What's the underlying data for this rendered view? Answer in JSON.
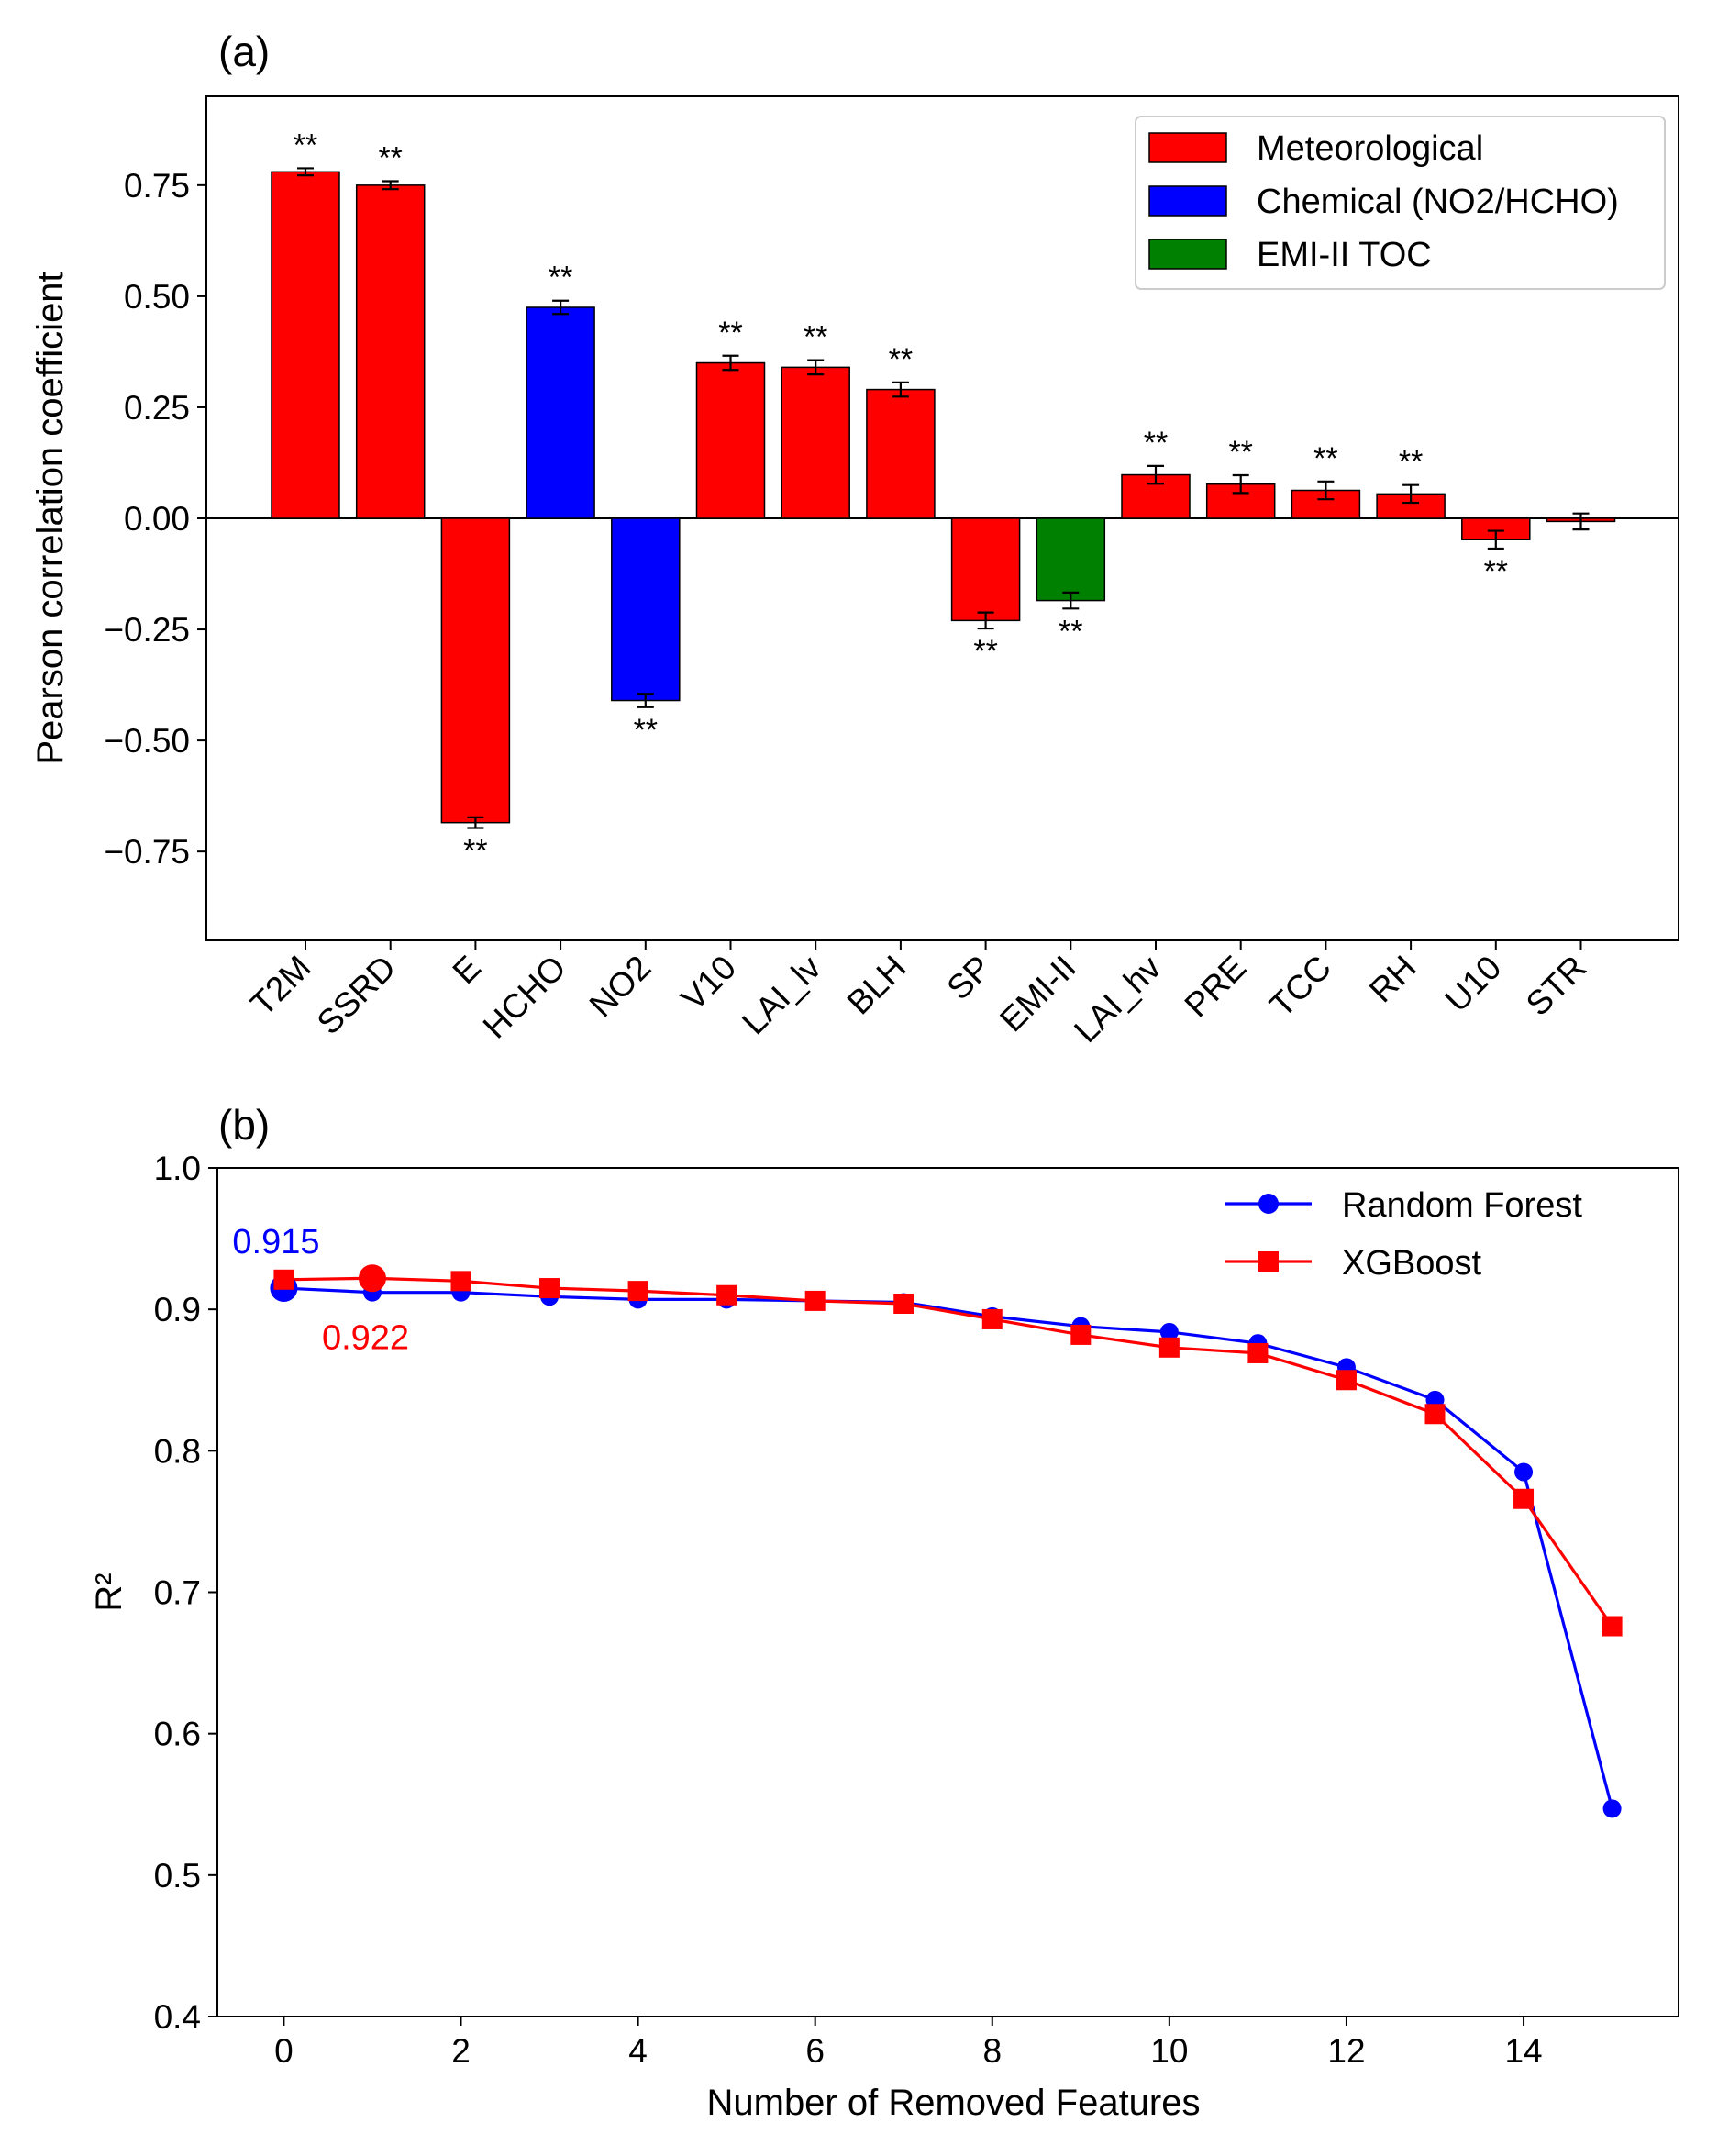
{
  "chart_data": [
    {
      "type": "bar",
      "panel_label": "(a)",
      "title": "",
      "xlabel": "",
      "ylabel": "Pearson correlation coefficient",
      "ylim": [
        -0.95,
        0.95
      ],
      "yticks": [
        0.75,
        0.5,
        0.25,
        0.0,
        -0.25,
        -0.5,
        -0.75
      ],
      "ytick_labels": [
        "0.75",
        "0.50",
        "0.25",
        "0.00",
        "−0.25",
        "−0.50",
        "−0.75"
      ],
      "grid": false,
      "legend_position": "top-right",
      "legend": [
        {
          "label": "Meteorological",
          "color": "#ff0000"
        },
        {
          "label": "Chemical (NO2/HCHO)",
          "color": "#0000ff"
        },
        {
          "label": "EMI-II TOC",
          "color": "#008000"
        }
      ],
      "categories": [
        "T2M",
        "SSRD",
        "E",
        "HCHO",
        "NO2",
        "V10",
        "LAI_lv",
        "BLH",
        "SP",
        "EMI-II",
        "LAI_hv",
        "PRE",
        "TCC",
        "RH",
        "U10",
        "STR"
      ],
      "values": [
        0.78,
        0.75,
        -0.685,
        0.475,
        -0.41,
        0.35,
        0.34,
        0.29,
        -0.23,
        -0.185,
        0.098,
        0.077,
        0.063,
        0.055,
        -0.048,
        -0.007
      ],
      "errors": [
        0.008,
        0.009,
        0.012,
        0.015,
        0.015,
        0.016,
        0.016,
        0.016,
        0.018,
        0.018,
        0.02,
        0.02,
        0.02,
        0.02,
        0.02,
        0.018
      ],
      "groups": [
        "Meteorological",
        "Meteorological",
        "Meteorological",
        "Chemical (NO2/HCHO)",
        "Chemical (NO2/HCHO)",
        "Meteorological",
        "Meteorological",
        "Meteorological",
        "Meteorological",
        "EMI-II TOC",
        "Meteorological",
        "Meteorological",
        "Meteorological",
        "Meteorological",
        "Meteorological",
        "Meteorological"
      ],
      "bar_colors": [
        "#ff0000",
        "#ff0000",
        "#ff0000",
        "#0000ff",
        "#0000ff",
        "#ff0000",
        "#ff0000",
        "#ff0000",
        "#ff0000",
        "#008000",
        "#ff0000",
        "#ff0000",
        "#ff0000",
        "#ff0000",
        "#ff0000",
        "#ff0000"
      ],
      "significance": [
        "**",
        "**",
        "**",
        "**",
        "**",
        "**",
        "**",
        "**",
        "**",
        "**",
        "**",
        "**",
        "**",
        "**",
        "**",
        ""
      ]
    },
    {
      "type": "line",
      "panel_label": "(b)",
      "title": "",
      "xlabel": "Number of Removed Features",
      "ylabel": "R²",
      "xlim": [
        -0.75,
        15.75
      ],
      "ylim": [
        0.4,
        1.0
      ],
      "xticks": [
        0,
        2,
        4,
        6,
        8,
        10,
        12,
        14
      ],
      "yticks": [
        0.4,
        0.5,
        0.6,
        0.7,
        0.8,
        0.9,
        1.0
      ],
      "grid": false,
      "legend_position": "top-right",
      "x": [
        0,
        1,
        2,
        3,
        4,
        5,
        6,
        7,
        8,
        9,
        10,
        11,
        12,
        13,
        14,
        15
      ],
      "series": [
        {
          "name": "Random Forest",
          "color": "#0000ff",
          "marker": "circle",
          "values": [
            0.915,
            0.912,
            0.912,
            0.909,
            0.907,
            0.907,
            0.906,
            0.905,
            0.895,
            0.888,
            0.884,
            0.876,
            0.859,
            0.836,
            0.785,
            0.547
          ],
          "highlight": {
            "x": 0,
            "value": 0.915,
            "label": "0.915"
          }
        },
        {
          "name": "XGBoost",
          "color": "#ff0000",
          "marker": "square",
          "values": [
            0.921,
            0.922,
            0.92,
            0.915,
            0.913,
            0.91,
            0.906,
            0.904,
            0.893,
            0.882,
            0.873,
            0.869,
            0.85,
            0.826,
            0.766,
            0.676
          ],
          "highlight": {
            "x": 1,
            "value": 0.922,
            "label": "0.922"
          }
        }
      ]
    }
  ]
}
